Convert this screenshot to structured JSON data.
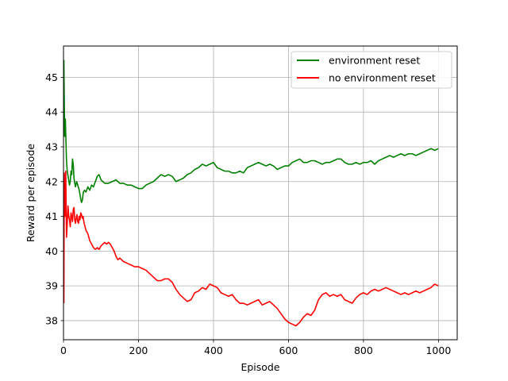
{
  "chart_data": {
    "type": "line",
    "xlabel": "Episode",
    "ylabel": "Reward per episode",
    "xlim": [
      0,
      1050
    ],
    "ylim": [
      37.45,
      45.9
    ],
    "xticks": [
      0,
      200,
      400,
      600,
      800,
      1000
    ],
    "yticks": [
      38,
      39,
      40,
      41,
      42,
      43,
      44,
      45
    ],
    "grid": true,
    "legend": "top-right",
    "series": [
      {
        "name": "environment reset",
        "color": "#008000",
        "points": [
          [
            1,
            45.5
          ],
          [
            3,
            43.3
          ],
          [
            5,
            43.8
          ],
          [
            8,
            42.6
          ],
          [
            10,
            42.3
          ],
          [
            13,
            42.1
          ],
          [
            16,
            41.9
          ],
          [
            18,
            42.0
          ],
          [
            20,
            42.3
          ],
          [
            22,
            42.2
          ],
          [
            24,
            42.65
          ],
          [
            26,
            42.5
          ],
          [
            28,
            42.1
          ],
          [
            30,
            41.95
          ],
          [
            32,
            41.85
          ],
          [
            35,
            42.0
          ],
          [
            38,
            41.9
          ],
          [
            42,
            41.75
          ],
          [
            46,
            41.5
          ],
          [
            48,
            41.4
          ],
          [
            50,
            41.45
          ],
          [
            53,
            41.7
          ],
          [
            56,
            41.75
          ],
          [
            60,
            41.7
          ],
          [
            65,
            41.85
          ],
          [
            70,
            41.75
          ],
          [
            75,
            41.9
          ],
          [
            80,
            41.85
          ],
          [
            85,
            42.0
          ],
          [
            90,
            42.15
          ],
          [
            95,
            42.2
          ],
          [
            100,
            42.05
          ],
          [
            110,
            41.95
          ],
          [
            120,
            41.95
          ],
          [
            130,
            42.0
          ],
          [
            140,
            42.05
          ],
          [
            150,
            41.95
          ],
          [
            160,
            41.95
          ],
          [
            170,
            41.9
          ],
          [
            180,
            41.9
          ],
          [
            190,
            41.85
          ],
          [
            200,
            41.8
          ],
          [
            210,
            41.8
          ],
          [
            220,
            41.9
          ],
          [
            230,
            41.95
          ],
          [
            240,
            42.0
          ],
          [
            250,
            42.1
          ],
          [
            260,
            42.2
          ],
          [
            270,
            42.15
          ],
          [
            280,
            42.2
          ],
          [
            290,
            42.15
          ],
          [
            300,
            42.0
          ],
          [
            310,
            42.05
          ],
          [
            320,
            42.1
          ],
          [
            330,
            42.2
          ],
          [
            340,
            42.25
          ],
          [
            350,
            42.35
          ],
          [
            360,
            42.4
          ],
          [
            370,
            42.5
          ],
          [
            380,
            42.45
          ],
          [
            390,
            42.5
          ],
          [
            400,
            42.55
          ],
          [
            410,
            42.4
          ],
          [
            420,
            42.35
          ],
          [
            430,
            42.3
          ],
          [
            440,
            42.3
          ],
          [
            450,
            42.25
          ],
          [
            460,
            42.25
          ],
          [
            470,
            42.3
          ],
          [
            480,
            42.25
          ],
          [
            490,
            42.4
          ],
          [
            500,
            42.45
          ],
          [
            510,
            42.5
          ],
          [
            520,
            42.55
          ],
          [
            530,
            42.5
          ],
          [
            540,
            42.45
          ],
          [
            550,
            42.5
          ],
          [
            560,
            42.45
          ],
          [
            570,
            42.35
          ],
          [
            580,
            42.4
          ],
          [
            590,
            42.45
          ],
          [
            600,
            42.45
          ],
          [
            610,
            42.55
          ],
          [
            620,
            42.6
          ],
          [
            630,
            42.65
          ],
          [
            640,
            42.55
          ],
          [
            650,
            42.55
          ],
          [
            660,
            42.6
          ],
          [
            670,
            42.6
          ],
          [
            680,
            42.55
          ],
          [
            690,
            42.5
          ],
          [
            700,
            42.55
          ],
          [
            710,
            42.55
          ],
          [
            720,
            42.6
          ],
          [
            730,
            42.65
          ],
          [
            740,
            42.65
          ],
          [
            750,
            42.55
          ],
          [
            760,
            42.5
          ],
          [
            770,
            42.5
          ],
          [
            780,
            42.55
          ],
          [
            790,
            42.5
          ],
          [
            800,
            42.55
          ],
          [
            810,
            42.55
          ],
          [
            820,
            42.6
          ],
          [
            830,
            42.5
          ],
          [
            840,
            42.6
          ],
          [
            850,
            42.65
          ],
          [
            860,
            42.7
          ],
          [
            870,
            42.75
          ],
          [
            880,
            42.7
          ],
          [
            890,
            42.75
          ],
          [
            900,
            42.8
          ],
          [
            910,
            42.75
          ],
          [
            920,
            42.8
          ],
          [
            930,
            42.8
          ],
          [
            940,
            42.75
          ],
          [
            950,
            42.8
          ],
          [
            960,
            42.85
          ],
          [
            970,
            42.9
          ],
          [
            980,
            42.95
          ],
          [
            990,
            42.9
          ],
          [
            1000,
            42.95
          ]
        ]
      },
      {
        "name": "no environment reset",
        "color": "#ff0000",
        "points": [
          [
            1,
            38.5
          ],
          [
            2,
            42.25
          ],
          [
            4,
            41.0
          ],
          [
            6,
            42.3
          ],
          [
            8,
            40.4
          ],
          [
            10,
            40.8
          ],
          [
            12,
            41.3
          ],
          [
            14,
            41.0
          ],
          [
            16,
            40.9
          ],
          [
            18,
            40.7
          ],
          [
            20,
            41.1
          ],
          [
            22,
            41.0
          ],
          [
            24,
            40.85
          ],
          [
            26,
            41.2
          ],
          [
            28,
            41.25
          ],
          [
            30,
            40.9
          ],
          [
            32,
            40.8
          ],
          [
            34,
            40.95
          ],
          [
            36,
            41.05
          ],
          [
            38,
            40.85
          ],
          [
            40,
            40.8
          ],
          [
            42,
            41.0
          ],
          [
            44,
            40.9
          ],
          [
            46,
            41.1
          ],
          [
            48,
            41.05
          ],
          [
            50,
            40.95
          ],
          [
            52,
            41.0
          ],
          [
            55,
            40.8
          ],
          [
            60,
            40.6
          ],
          [
            65,
            40.5
          ],
          [
            70,
            40.3
          ],
          [
            75,
            40.2
          ],
          [
            80,
            40.1
          ],
          [
            85,
            40.05
          ],
          [
            90,
            40.1
          ],
          [
            95,
            40.05
          ],
          [
            100,
            40.15
          ],
          [
            105,
            40.2
          ],
          [
            110,
            40.25
          ],
          [
            115,
            40.2
          ],
          [
            120,
            40.25
          ],
          [
            125,
            40.2
          ],
          [
            130,
            40.1
          ],
          [
            135,
            40.0
          ],
          [
            140,
            39.85
          ],
          [
            145,
            39.75
          ],
          [
            150,
            39.8
          ],
          [
            155,
            39.75
          ],
          [
            160,
            39.7
          ],
          [
            170,
            39.65
          ],
          [
            180,
            39.6
          ],
          [
            190,
            39.55
          ],
          [
            200,
            39.55
          ],
          [
            210,
            39.5
          ],
          [
            220,
            39.45
          ],
          [
            230,
            39.35
          ],
          [
            240,
            39.25
          ],
          [
            250,
            39.15
          ],
          [
            260,
            39.15
          ],
          [
            270,
            39.2
          ],
          [
            280,
            39.2
          ],
          [
            290,
            39.1
          ],
          [
            300,
            38.9
          ],
          [
            310,
            38.75
          ],
          [
            320,
            38.65
          ],
          [
            330,
            38.55
          ],
          [
            340,
            38.6
          ],
          [
            350,
            38.8
          ],
          [
            360,
            38.85
          ],
          [
            370,
            38.95
          ],
          [
            380,
            38.9
          ],
          [
            390,
            39.05
          ],
          [
            400,
            39.0
          ],
          [
            410,
            38.95
          ],
          [
            420,
            38.8
          ],
          [
            430,
            38.75
          ],
          [
            440,
            38.7
          ],
          [
            450,
            38.75
          ],
          [
            460,
            38.6
          ],
          [
            470,
            38.5
          ],
          [
            480,
            38.5
          ],
          [
            490,
            38.45
          ],
          [
            500,
            38.5
          ],
          [
            510,
            38.55
          ],
          [
            520,
            38.6
          ],
          [
            530,
            38.45
          ],
          [
            540,
            38.5
          ],
          [
            550,
            38.55
          ],
          [
            560,
            38.45
          ],
          [
            570,
            38.35
          ],
          [
            580,
            38.2
          ],
          [
            590,
            38.05
          ],
          [
            600,
            37.95
          ],
          [
            610,
            37.9
          ],
          [
            620,
            37.85
          ],
          [
            630,
            37.95
          ],
          [
            640,
            38.1
          ],
          [
            650,
            38.2
          ],
          [
            660,
            38.15
          ],
          [
            670,
            38.3
          ],
          [
            680,
            38.6
          ],
          [
            690,
            38.75
          ],
          [
            700,
            38.8
          ],
          [
            710,
            38.7
          ],
          [
            720,
            38.75
          ],
          [
            730,
            38.7
          ],
          [
            740,
            38.75
          ],
          [
            750,
            38.6
          ],
          [
            760,
            38.55
          ],
          [
            770,
            38.5
          ],
          [
            780,
            38.65
          ],
          [
            790,
            38.75
          ],
          [
            800,
            38.8
          ],
          [
            810,
            38.75
          ],
          [
            820,
            38.85
          ],
          [
            830,
            38.9
          ],
          [
            840,
            38.85
          ],
          [
            850,
            38.9
          ],
          [
            860,
            38.95
          ],
          [
            870,
            38.9
          ],
          [
            880,
            38.85
          ],
          [
            890,
            38.8
          ],
          [
            900,
            38.75
          ],
          [
            910,
            38.8
          ],
          [
            920,
            38.75
          ],
          [
            930,
            38.8
          ],
          [
            940,
            38.85
          ],
          [
            950,
            38.8
          ],
          [
            960,
            38.85
          ],
          [
            970,
            38.9
          ],
          [
            980,
            38.95
          ],
          [
            990,
            39.05
          ],
          [
            1000,
            39.0
          ]
        ]
      }
    ]
  }
}
